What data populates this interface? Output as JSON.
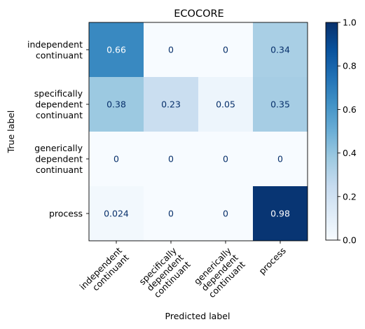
{
  "chart_data": {
    "type": "heatmap",
    "title": "ECOCORE",
    "xlabel": "Predicted label",
    "ylabel": "True label",
    "row_labels": [
      [
        "independent",
        "continuant"
      ],
      [
        "specifically",
        "dependent",
        "continuant"
      ],
      [
        "generically",
        "dependent",
        "continuant"
      ],
      [
        "process"
      ]
    ],
    "col_labels": [
      [
        "independent",
        "continuant"
      ],
      [
        "specifically",
        "dependent",
        "continuant"
      ],
      [
        "generically",
        "dependent",
        "continuant"
      ],
      [
        "process"
      ]
    ],
    "values": [
      [
        0.66,
        0,
        0,
        0.34
      ],
      [
        0.38,
        0.23,
        0.05,
        0.35
      ],
      [
        0,
        0,
        0,
        0
      ],
      [
        0.024,
        0,
        0,
        0.98
      ]
    ],
    "value_labels": [
      [
        "0.66",
        "0",
        "0",
        "0.34"
      ],
      [
        "0.38",
        "0.23",
        "0.05",
        "0.35"
      ],
      [
        "0",
        "0",
        "0",
        "0"
      ],
      [
        "0.024",
        "0",
        "0",
        "0.98"
      ]
    ],
    "colormap": "Blues",
    "colorbar": {
      "range": [
        0.0,
        1.0
      ],
      "ticks": [
        0.0,
        0.2,
        0.4,
        0.6,
        0.8,
        1.0
      ],
      "tick_labels": [
        "0.0",
        "0.2",
        "0.4",
        "0.6",
        "0.8",
        "1.0"
      ]
    },
    "legend": "none"
  }
}
